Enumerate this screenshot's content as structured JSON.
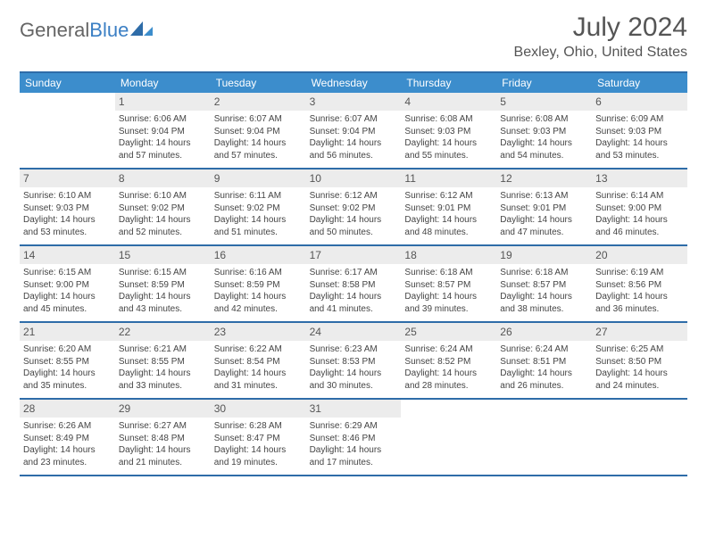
{
  "logo": {
    "text_gray": "General",
    "text_blue": "Blue"
  },
  "title": "July 2024",
  "location": "Bexley, Ohio, United States",
  "colors": {
    "header_bar": "#3c8dcc",
    "rule": "#2e6ca8",
    "daynum_bg": "#ececec",
    "text": "#444444",
    "title_text": "#555555"
  },
  "days_of_week": [
    "Sunday",
    "Monday",
    "Tuesday",
    "Wednesday",
    "Thursday",
    "Friday",
    "Saturday"
  ],
  "weeks": [
    [
      null,
      {
        "n": "1",
        "sr": "Sunrise: 6:06 AM",
        "ss": "Sunset: 9:04 PM",
        "dl": "Daylight: 14 hours and 57 minutes."
      },
      {
        "n": "2",
        "sr": "Sunrise: 6:07 AM",
        "ss": "Sunset: 9:04 PM",
        "dl": "Daylight: 14 hours and 57 minutes."
      },
      {
        "n": "3",
        "sr": "Sunrise: 6:07 AM",
        "ss": "Sunset: 9:04 PM",
        "dl": "Daylight: 14 hours and 56 minutes."
      },
      {
        "n": "4",
        "sr": "Sunrise: 6:08 AM",
        "ss": "Sunset: 9:03 PM",
        "dl": "Daylight: 14 hours and 55 minutes."
      },
      {
        "n": "5",
        "sr": "Sunrise: 6:08 AM",
        "ss": "Sunset: 9:03 PM",
        "dl": "Daylight: 14 hours and 54 minutes."
      },
      {
        "n": "6",
        "sr": "Sunrise: 6:09 AM",
        "ss": "Sunset: 9:03 PM",
        "dl": "Daylight: 14 hours and 53 minutes."
      }
    ],
    [
      {
        "n": "7",
        "sr": "Sunrise: 6:10 AM",
        "ss": "Sunset: 9:03 PM",
        "dl": "Daylight: 14 hours and 53 minutes."
      },
      {
        "n": "8",
        "sr": "Sunrise: 6:10 AM",
        "ss": "Sunset: 9:02 PM",
        "dl": "Daylight: 14 hours and 52 minutes."
      },
      {
        "n": "9",
        "sr": "Sunrise: 6:11 AM",
        "ss": "Sunset: 9:02 PM",
        "dl": "Daylight: 14 hours and 51 minutes."
      },
      {
        "n": "10",
        "sr": "Sunrise: 6:12 AM",
        "ss": "Sunset: 9:02 PM",
        "dl": "Daylight: 14 hours and 50 minutes."
      },
      {
        "n": "11",
        "sr": "Sunrise: 6:12 AM",
        "ss": "Sunset: 9:01 PM",
        "dl": "Daylight: 14 hours and 48 minutes."
      },
      {
        "n": "12",
        "sr": "Sunrise: 6:13 AM",
        "ss": "Sunset: 9:01 PM",
        "dl": "Daylight: 14 hours and 47 minutes."
      },
      {
        "n": "13",
        "sr": "Sunrise: 6:14 AM",
        "ss": "Sunset: 9:00 PM",
        "dl": "Daylight: 14 hours and 46 minutes."
      }
    ],
    [
      {
        "n": "14",
        "sr": "Sunrise: 6:15 AM",
        "ss": "Sunset: 9:00 PM",
        "dl": "Daylight: 14 hours and 45 minutes."
      },
      {
        "n": "15",
        "sr": "Sunrise: 6:15 AM",
        "ss": "Sunset: 8:59 PM",
        "dl": "Daylight: 14 hours and 43 minutes."
      },
      {
        "n": "16",
        "sr": "Sunrise: 6:16 AM",
        "ss": "Sunset: 8:59 PM",
        "dl": "Daylight: 14 hours and 42 minutes."
      },
      {
        "n": "17",
        "sr": "Sunrise: 6:17 AM",
        "ss": "Sunset: 8:58 PM",
        "dl": "Daylight: 14 hours and 41 minutes."
      },
      {
        "n": "18",
        "sr": "Sunrise: 6:18 AM",
        "ss": "Sunset: 8:57 PM",
        "dl": "Daylight: 14 hours and 39 minutes."
      },
      {
        "n": "19",
        "sr": "Sunrise: 6:18 AM",
        "ss": "Sunset: 8:57 PM",
        "dl": "Daylight: 14 hours and 38 minutes."
      },
      {
        "n": "20",
        "sr": "Sunrise: 6:19 AM",
        "ss": "Sunset: 8:56 PM",
        "dl": "Daylight: 14 hours and 36 minutes."
      }
    ],
    [
      {
        "n": "21",
        "sr": "Sunrise: 6:20 AM",
        "ss": "Sunset: 8:55 PM",
        "dl": "Daylight: 14 hours and 35 minutes."
      },
      {
        "n": "22",
        "sr": "Sunrise: 6:21 AM",
        "ss": "Sunset: 8:55 PM",
        "dl": "Daylight: 14 hours and 33 minutes."
      },
      {
        "n": "23",
        "sr": "Sunrise: 6:22 AM",
        "ss": "Sunset: 8:54 PM",
        "dl": "Daylight: 14 hours and 31 minutes."
      },
      {
        "n": "24",
        "sr": "Sunrise: 6:23 AM",
        "ss": "Sunset: 8:53 PM",
        "dl": "Daylight: 14 hours and 30 minutes."
      },
      {
        "n": "25",
        "sr": "Sunrise: 6:24 AM",
        "ss": "Sunset: 8:52 PM",
        "dl": "Daylight: 14 hours and 28 minutes."
      },
      {
        "n": "26",
        "sr": "Sunrise: 6:24 AM",
        "ss": "Sunset: 8:51 PM",
        "dl": "Daylight: 14 hours and 26 minutes."
      },
      {
        "n": "27",
        "sr": "Sunrise: 6:25 AM",
        "ss": "Sunset: 8:50 PM",
        "dl": "Daylight: 14 hours and 24 minutes."
      }
    ],
    [
      {
        "n": "28",
        "sr": "Sunrise: 6:26 AM",
        "ss": "Sunset: 8:49 PM",
        "dl": "Daylight: 14 hours and 23 minutes."
      },
      {
        "n": "29",
        "sr": "Sunrise: 6:27 AM",
        "ss": "Sunset: 8:48 PM",
        "dl": "Daylight: 14 hours and 21 minutes."
      },
      {
        "n": "30",
        "sr": "Sunrise: 6:28 AM",
        "ss": "Sunset: 8:47 PM",
        "dl": "Daylight: 14 hours and 19 minutes."
      },
      {
        "n": "31",
        "sr": "Sunrise: 6:29 AM",
        "ss": "Sunset: 8:46 PM",
        "dl": "Daylight: 14 hours and 17 minutes."
      },
      null,
      null,
      null
    ]
  ]
}
